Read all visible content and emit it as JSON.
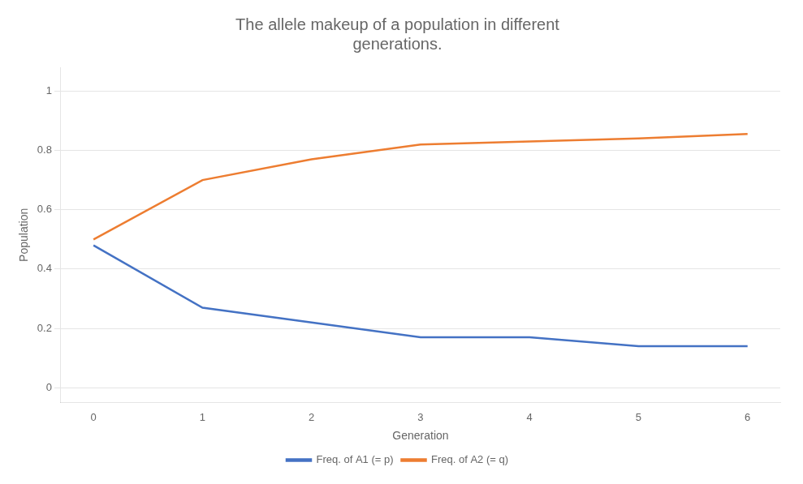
{
  "chart_data": {
    "type": "line",
    "title": "The allele makeup of a population in different\ngenerations.",
    "x_label": "Generation",
    "y_label": "Population",
    "x": [
      0,
      1,
      2,
      3,
      4,
      5,
      6
    ],
    "series": [
      {
        "name": "Freq. of A1 (= p)",
        "color": "#4472C4",
        "values": [
          0.48,
          0.27,
          0.22,
          0.17,
          0.17,
          0.14,
          0.14
        ]
      },
      {
        "name": "Freq. of A2 (= q)",
        "color": "#ED7D31",
        "values": [
          0.5,
          0.7,
          0.77,
          0.82,
          0.83,
          0.84,
          0.855
        ]
      }
    ],
    "xlim": [
      -0.3,
      6.3
    ],
    "xticks": [
      0,
      1,
      2,
      3,
      4,
      5,
      6
    ],
    "ylim": [
      -0.05,
      1.08
    ],
    "yticks": [
      0,
      0.2,
      0.4,
      0.6,
      0.8,
      1
    ],
    "grid": "y",
    "legend": "bottom"
  }
}
